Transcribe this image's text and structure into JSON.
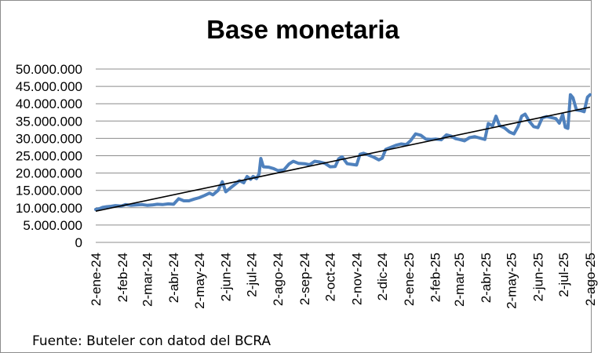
{
  "chart_data": {
    "type": "line",
    "title": "Base monetaria",
    "xlabel": "",
    "ylabel": "",
    "ylim": [
      0,
      50000000
    ],
    "y_tick_labels": [
      "0",
      "5.000.000",
      "10.000.000",
      "15.000.000",
      "20.000.000",
      "25.000.000",
      "30.000.000",
      "35.000.000",
      "40.000.000",
      "45.000.000",
      "50.000.000"
    ],
    "y_ticks": [
      0,
      5000000,
      10000000,
      15000000,
      20000000,
      25000000,
      30000000,
      35000000,
      40000000,
      45000000,
      50000000
    ],
    "x_tick_labels": [
      "2-ene-24",
      "2-feb-24",
      "2-mar-24",
      "2-abr-24",
      "2-may-24",
      "2-jun-24",
      "2-jul-24",
      "2-ago-24",
      "2-sep-24",
      "2-oct-24",
      "2-nov-24",
      "2-dic-24",
      "2-ene-25",
      "2-feb-25",
      "2-mar-25",
      "2-abr-25",
      "2-may-25",
      "2-jun-25",
      "2-jul-25",
      "2-ago-25"
    ],
    "x_ticks": [
      "2024-01-02",
      "2024-02-02",
      "2024-03-02",
      "2024-04-02",
      "2024-05-02",
      "2024-06-02",
      "2024-07-02",
      "2024-08-02",
      "2024-09-02",
      "2024-10-02",
      "2024-11-02",
      "2024-12-02",
      "2025-01-02",
      "2025-02-02",
      "2025-03-02",
      "2025-04-02",
      "2025-05-02",
      "2025-06-02",
      "2025-07-02",
      "2025-08-02"
    ],
    "xlim": [
      "2024-01-02",
      "2025-08-02"
    ],
    "grid": "horizontal",
    "series": [
      {
        "color": "#4f81bd",
        "points": [
          [
            "2024-01-02",
            9500000
          ],
          [
            "2024-01-06",
            9700000
          ],
          [
            "2024-01-10",
            10100000
          ],
          [
            "2024-01-15",
            10300000
          ],
          [
            "2024-01-20",
            10400000
          ],
          [
            "2024-01-25",
            10600000
          ],
          [
            "2024-02-01",
            10500000
          ],
          [
            "2024-02-06",
            10900000
          ],
          [
            "2024-02-12",
            10700000
          ],
          [
            "2024-02-18",
            10800000
          ],
          [
            "2024-02-25",
            10900000
          ],
          [
            "2024-03-02",
            10700000
          ],
          [
            "2024-03-08",
            10800000
          ],
          [
            "2024-03-14",
            11000000
          ],
          [
            "2024-03-20",
            10900000
          ],
          [
            "2024-03-27",
            11100000
          ],
          [
            "2024-04-02",
            11000000
          ],
          [
            "2024-04-08",
            12600000
          ],
          [
            "2024-04-14",
            12000000
          ],
          [
            "2024-04-20",
            12000000
          ],
          [
            "2024-04-26",
            12500000
          ],
          [
            "2024-05-02",
            12900000
          ],
          [
            "2024-05-08",
            13500000
          ],
          [
            "2024-05-14",
            14200000
          ],
          [
            "2024-05-18",
            13700000
          ],
          [
            "2024-05-24",
            15000000
          ],
          [
            "2024-05-29",
            17500000
          ],
          [
            "2024-06-02",
            14600000
          ],
          [
            "2024-06-08",
            15800000
          ],
          [
            "2024-06-14",
            17000000
          ],
          [
            "2024-06-18",
            17800000
          ],
          [
            "2024-06-23",
            17200000
          ],
          [
            "2024-06-27",
            19000000
          ],
          [
            "2024-07-01",
            18200000
          ],
          [
            "2024-07-04",
            19000000
          ],
          [
            "2024-07-08",
            18400000
          ],
          [
            "2024-07-11",
            19800000
          ],
          [
            "2024-07-13",
            24200000
          ],
          [
            "2024-07-16",
            21800000
          ],
          [
            "2024-07-22",
            21700000
          ],
          [
            "2024-07-28",
            21300000
          ],
          [
            "2024-08-02",
            20700000
          ],
          [
            "2024-08-09",
            20900000
          ],
          [
            "2024-08-15",
            22600000
          ],
          [
            "2024-08-20",
            23400000
          ],
          [
            "2024-08-26",
            22800000
          ],
          [
            "2024-09-02",
            22700000
          ],
          [
            "2024-09-08",
            22400000
          ],
          [
            "2024-09-14",
            23400000
          ],
          [
            "2024-09-20",
            23200000
          ],
          [
            "2024-09-26",
            22800000
          ],
          [
            "2024-10-02",
            21800000
          ],
          [
            "2024-10-08",
            21900000
          ],
          [
            "2024-10-12",
            24100000
          ],
          [
            "2024-10-16",
            24700000
          ],
          [
            "2024-10-22",
            22700000
          ],
          [
            "2024-10-28",
            22500000
          ],
          [
            "2024-11-02",
            22300000
          ],
          [
            "2024-11-06",
            25400000
          ],
          [
            "2024-11-10",
            25700000
          ],
          [
            "2024-11-16",
            25200000
          ],
          [
            "2024-11-22",
            24600000
          ],
          [
            "2024-11-28",
            23800000
          ],
          [
            "2024-12-02",
            24300000
          ],
          [
            "2024-12-06",
            26800000
          ],
          [
            "2024-12-12",
            27400000
          ],
          [
            "2024-12-18",
            28000000
          ],
          [
            "2024-12-24",
            28400000
          ],
          [
            "2024-12-30",
            28200000
          ],
          [
            "2025-01-04",
            29300000
          ],
          [
            "2025-01-10",
            31300000
          ],
          [
            "2025-01-16",
            30900000
          ],
          [
            "2025-01-22",
            29800000
          ],
          [
            "2025-01-28",
            29700000
          ],
          [
            "2025-02-03",
            29800000
          ],
          [
            "2025-02-09",
            29600000
          ],
          [
            "2025-02-15",
            31000000
          ],
          [
            "2025-02-20",
            30700000
          ],
          [
            "2025-02-26",
            29900000
          ],
          [
            "2025-03-02",
            29700000
          ],
          [
            "2025-03-08",
            29300000
          ],
          [
            "2025-03-14",
            30200000
          ],
          [
            "2025-03-20",
            30500000
          ],
          [
            "2025-03-26",
            30100000
          ],
          [
            "2025-04-01",
            29700000
          ],
          [
            "2025-04-05",
            34300000
          ],
          [
            "2025-04-10",
            33600000
          ],
          [
            "2025-04-14",
            36400000
          ],
          [
            "2025-04-18",
            33700000
          ],
          [
            "2025-04-24",
            33000000
          ],
          [
            "2025-04-30",
            31800000
          ],
          [
            "2025-05-05",
            31300000
          ],
          [
            "2025-05-10",
            33500000
          ],
          [
            "2025-05-14",
            36400000
          ],
          [
            "2025-05-18",
            37000000
          ],
          [
            "2025-05-23",
            34900000
          ],
          [
            "2025-05-28",
            33400000
          ],
          [
            "2025-06-02",
            33100000
          ],
          [
            "2025-06-07",
            35900000
          ],
          [
            "2025-06-12",
            36300000
          ],
          [
            "2025-06-18",
            36000000
          ],
          [
            "2025-06-23",
            35700000
          ],
          [
            "2025-06-27",
            34400000
          ],
          [
            "2025-07-01",
            36900000
          ],
          [
            "2025-07-04",
            33200000
          ],
          [
            "2025-07-07",
            32900000
          ],
          [
            "2025-07-10",
            42600000
          ],
          [
            "2025-07-13",
            41700000
          ],
          [
            "2025-07-17",
            38200000
          ],
          [
            "2025-07-22",
            38000000
          ],
          [
            "2025-07-26",
            37700000
          ],
          [
            "2025-07-30",
            41900000
          ],
          [
            "2025-08-02",
            42600000
          ]
        ]
      }
    ],
    "trendline": {
      "color": "#000000",
      "points": [
        [
          "2024-01-02",
          9000000
        ],
        [
          "2025-08-02",
          39000000
        ]
      ]
    }
  },
  "source_note": "Fuente: Buteler con datod del BCRA"
}
